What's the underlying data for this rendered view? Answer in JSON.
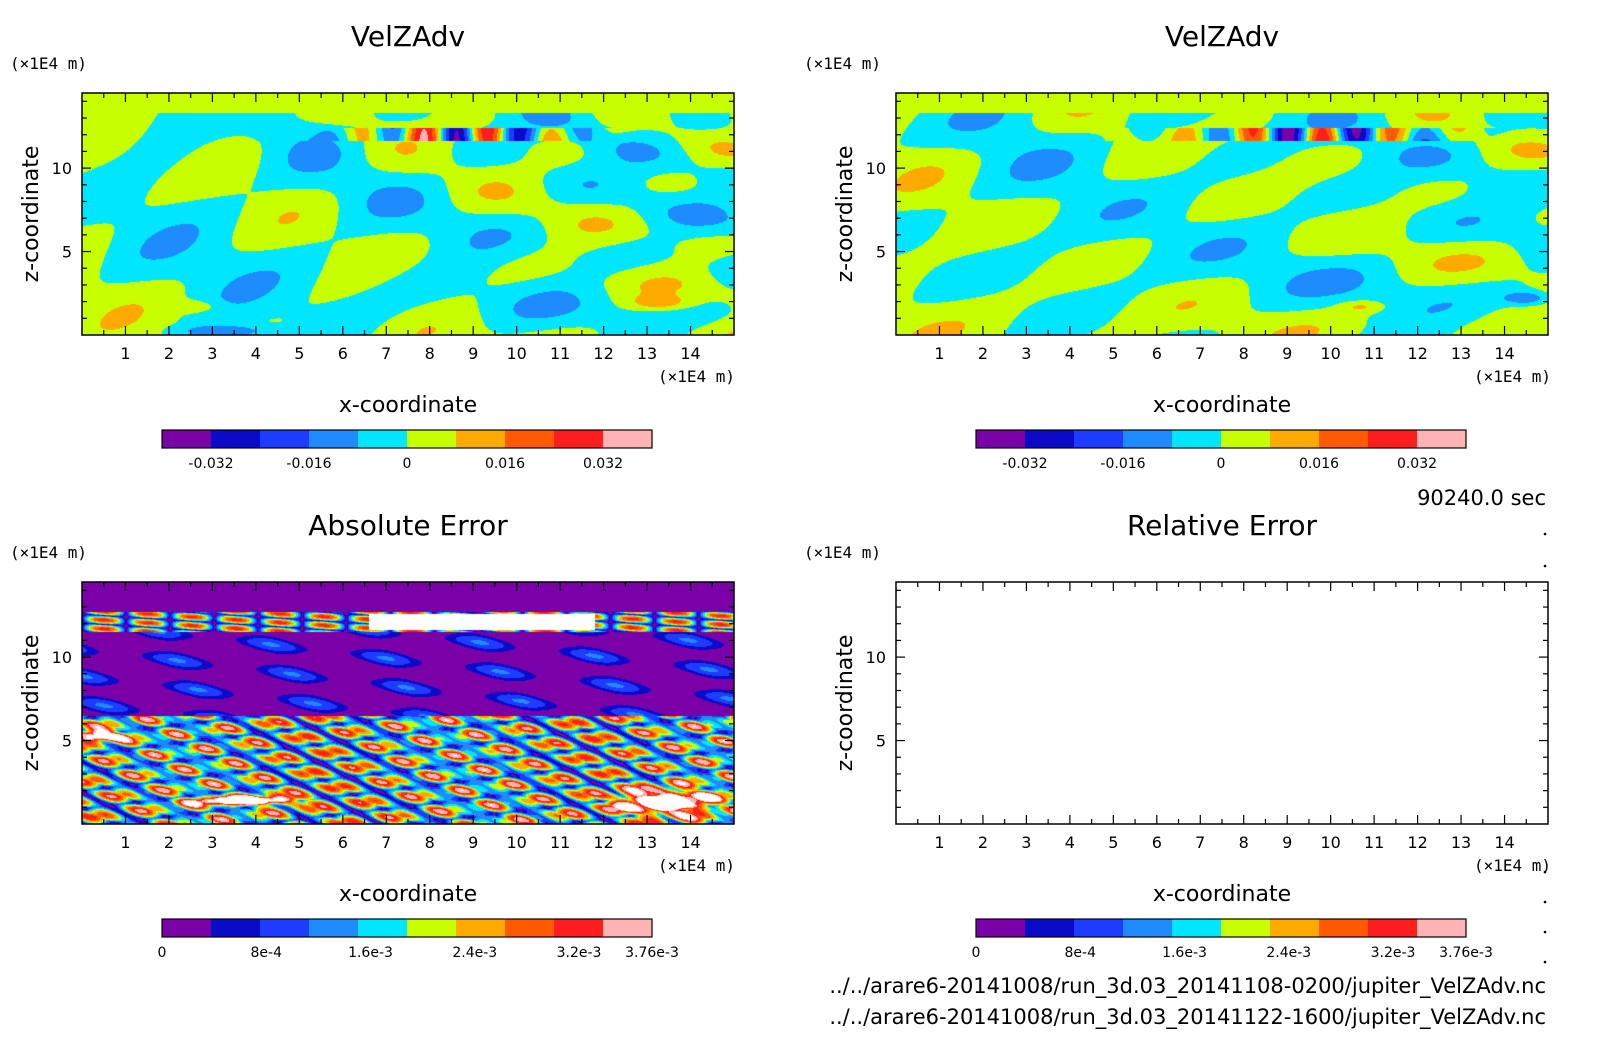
{
  "info": {
    "time_label": "90240.0 sec",
    "file_1": "../../arare6-20141008/run_3d.03_20141108-0200/jupiter_VelZAdv.nc",
    "file_2": "../../arare6-20141008/run_3d.03_20141122-1600/jupiter_VelZAdv.nc"
  },
  "chart_data": [
    {
      "type": "heatmap",
      "title": "VelZAdv",
      "xlabel": "x-coordinate",
      "ylabel": "z-coordinate",
      "x_unit": "(×1E4 m)",
      "y_unit": "(×1E4 m)",
      "xlim": [
        0,
        15
      ],
      "ylim": [
        0,
        14.5
      ],
      "x_ticks": [
        1,
        2,
        3,
        4,
        5,
        6,
        7,
        8,
        9,
        10,
        11,
        12,
        13,
        14
      ],
      "y_ticks": [
        5,
        10
      ],
      "field": "velzadv_run1",
      "colorbar": {
        "colors": [
          "#7a00a8",
          "#0a0ac8",
          "#1e3cff",
          "#1e8cff",
          "#00e6ff",
          "#c8ff00",
          "#ffaa00",
          "#ff5a00",
          "#ff1e1e",
          "#ffb4b4"
        ],
        "ticks": [
          "-0.032",
          "-0.016",
          "0",
          "0.016",
          "0.032"
        ],
        "range": [
          -0.04,
          0.04
        ]
      }
    },
    {
      "type": "heatmap",
      "title": "VelZAdv",
      "xlabel": "x-coordinate",
      "ylabel": "z-coordinate",
      "x_unit": "(×1E4 m)",
      "y_unit": "(×1E4 m)",
      "xlim": [
        0,
        15
      ],
      "ylim": [
        0,
        14.5
      ],
      "x_ticks": [
        1,
        2,
        3,
        4,
        5,
        6,
        7,
        8,
        9,
        10,
        11,
        12,
        13,
        14
      ],
      "y_ticks": [
        5,
        10
      ],
      "field": "velzadv_run2",
      "colorbar": {
        "colors": [
          "#7a00a8",
          "#0a0ac8",
          "#1e3cff",
          "#1e8cff",
          "#00e6ff",
          "#c8ff00",
          "#ffaa00",
          "#ff5a00",
          "#ff1e1e",
          "#ffb4b4"
        ],
        "ticks": [
          "-0.032",
          "-0.016",
          "0",
          "0.016",
          "0.032"
        ],
        "range": [
          -0.04,
          0.04
        ]
      }
    },
    {
      "type": "heatmap",
      "title": "Absolute Error",
      "xlabel": "x-coordinate",
      "ylabel": "z-coordinate",
      "x_unit": "(×1E4 m)",
      "y_unit": "(×1E4 m)",
      "xlim": [
        0,
        15
      ],
      "ylim": [
        0,
        14.5
      ],
      "x_ticks": [
        1,
        2,
        3,
        4,
        5,
        6,
        7,
        8,
        9,
        10,
        11,
        12,
        13,
        14
      ],
      "y_ticks": [
        5,
        10
      ],
      "field": "absolute_error",
      "colorbar": {
        "colors": [
          "#7a00a8",
          "#0a0ac8",
          "#1e3cff",
          "#1e8cff",
          "#00e6ff",
          "#c8ff00",
          "#ffaa00",
          "#ff5a00",
          "#ff1e1e",
          "#ffb4b4"
        ],
        "ticks": [
          "0",
          "8e-4",
          "1.6e-3",
          "2.4e-3",
          "3.2e-3",
          "3.76e-3"
        ],
        "range": [
          0,
          0.00376
        ]
      }
    },
    {
      "type": "heatmap",
      "title": "Relative Error",
      "xlabel": "x-coordinate",
      "ylabel": "z-coordinate",
      "x_unit": "(×1E4 m)",
      "y_unit": "(×1E4 m)",
      "xlim": [
        0,
        15
      ],
      "ylim": [
        0,
        14.5
      ],
      "x_ticks": [
        1,
        2,
        3,
        4,
        5,
        6,
        7,
        8,
        9,
        10,
        11,
        12,
        13,
        14
      ],
      "y_ticks": [
        5,
        10
      ],
      "field": "none",
      "colorbar": {
        "colors": [
          "#7a00a8",
          "#0a0ac8",
          "#1e3cff",
          "#1e8cff",
          "#00e6ff",
          "#c8ff00",
          "#ffaa00",
          "#ff5a00",
          "#ff1e1e",
          "#ffb4b4"
        ],
        "ticks": [
          "0",
          "8e-4",
          "1.6e-3",
          "2.4e-3",
          "3.2e-3",
          "3.76e-3"
        ],
        "range": [
          0,
          0.00376
        ]
      }
    }
  ]
}
